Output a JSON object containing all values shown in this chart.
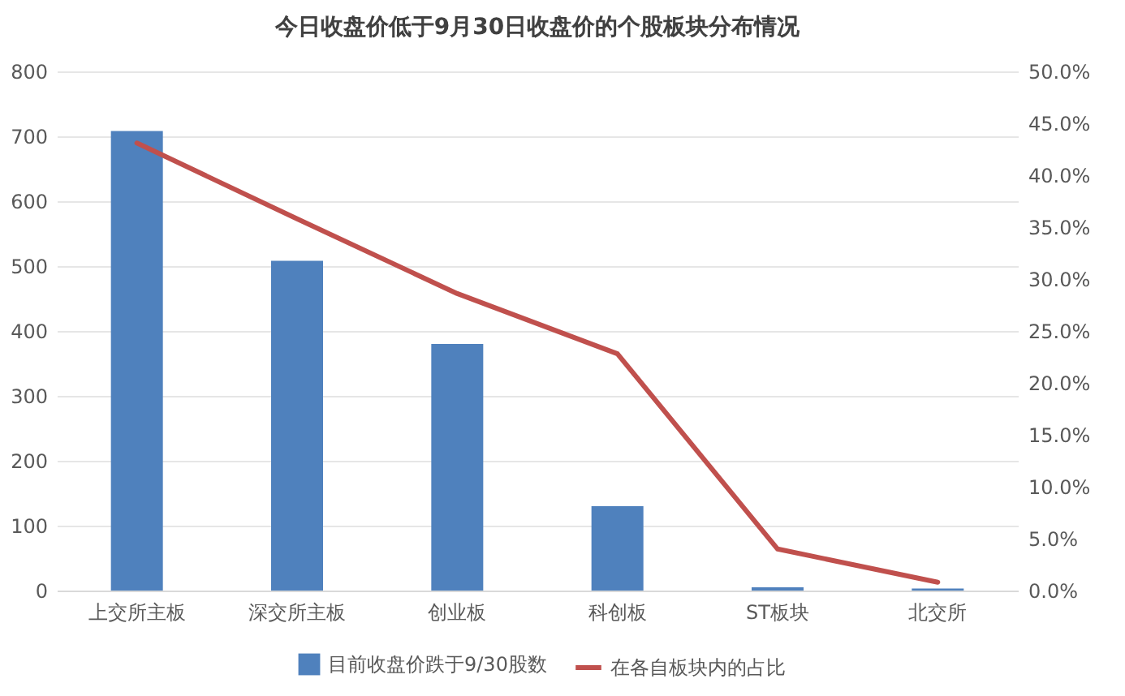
{
  "chart_data": {
    "type": "bar",
    "title": "今日收盘价低于9月30日收盘价的个股板块分布情况",
    "categories": [
      "上交所主板",
      "深交所主板",
      "创业板",
      "科创板",
      "ST板块",
      "北交所"
    ],
    "series": [
      {
        "name": "目前收盘价跌于9/30股数",
        "color": "#4f81bd",
        "values": [
          708,
          508,
          380,
          130,
          5,
          3
        ]
      },
      {
        "name": "在各自板块内的占比",
        "type": "line",
        "axis": "y2",
        "color": "#c0504d",
        "values": [
          43.1,
          35.8,
          28.6,
          22.8,
          4.0,
          0.8
        ]
      }
    ],
    "ylim": [
      0,
      800
    ],
    "yticks": [
      0,
      100,
      200,
      300,
      400,
      500,
      600,
      700,
      800
    ],
    "y2lim": [
      0,
      50
    ],
    "y2ticks": [
      {
        "value": 0,
        "label": "0.0%"
      },
      {
        "value": 5,
        "label": "5.0%"
      },
      {
        "value": 10,
        "label": "10.0%"
      },
      {
        "value": 15,
        "label": "15.0%"
      },
      {
        "value": 20,
        "label": "20.0%"
      },
      {
        "value": 25,
        "label": "25.0%"
      },
      {
        "value": 30,
        "label": "30.0%"
      },
      {
        "value": 35,
        "label": "35.0%"
      },
      {
        "value": 40,
        "label": "40.0%"
      },
      {
        "value": 45,
        "label": "45.0%"
      },
      {
        "value": 50,
        "label": "50.0%"
      }
    ],
    "grid": "y",
    "legend": "bottom"
  }
}
